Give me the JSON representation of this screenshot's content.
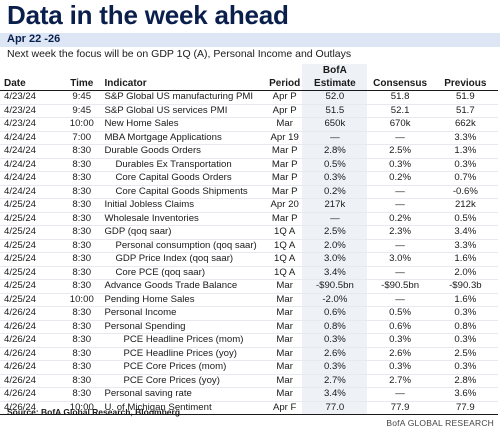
{
  "title": "Data in the week ahead",
  "banner": "Apr 22 -26",
  "subtitle": "Next week the focus will be on GDP 1Q (A), Personal Income and Outlays",
  "columns": {
    "date": "Date",
    "time": "Time",
    "indicator": "Indicator",
    "period": "Period",
    "bofa_top": "BofA",
    "bofa_bottom": "Estimate",
    "consensus": "Consensus",
    "previous": "Previous"
  },
  "rows": [
    {
      "date": "4/23/24",
      "time": "9:45",
      "indicator": "S&P Global US manufacturing PMI",
      "indent": 0,
      "period": "Apr P",
      "bofa": "52.0",
      "consensus": "51.8",
      "previous": "51.9"
    },
    {
      "date": "4/23/24",
      "time": "9:45",
      "indicator": "S&P Global US services PMI",
      "indent": 0,
      "period": "Apr P",
      "bofa": "51.5",
      "consensus": "52.1",
      "previous": "51.7"
    },
    {
      "date": "4/23/24",
      "time": "10:00",
      "indicator": "New Home Sales",
      "indent": 0,
      "period": "Mar",
      "bofa": "650k",
      "consensus": "670k",
      "previous": "662k"
    },
    {
      "date": "4/24/24",
      "time": "7:00",
      "indicator": "MBA Mortgage Applications",
      "indent": 0,
      "period": "Apr 19",
      "bofa": "—",
      "consensus": "—",
      "previous": "3.3%"
    },
    {
      "date": "4/24/24",
      "time": "8:30",
      "indicator": "Durable Goods Orders",
      "indent": 0,
      "period": "Mar P",
      "bofa": "2.8%",
      "consensus": "2.5%",
      "previous": "1.3%"
    },
    {
      "date": "4/24/24",
      "time": "8:30",
      "indicator": "Durables Ex Transportation",
      "indent": 1,
      "period": "Mar P",
      "bofa": "0.5%",
      "consensus": "0.3%",
      "previous": "0.3%"
    },
    {
      "date": "4/24/24",
      "time": "8:30",
      "indicator": "Core Capital Goods Orders",
      "indent": 1,
      "period": "Mar P",
      "bofa": "0.3%",
      "consensus": "0.2%",
      "previous": "0.7%"
    },
    {
      "date": "4/24/24",
      "time": "8:30",
      "indicator": "Core Capital Goods Shipments",
      "indent": 1,
      "period": "Mar P",
      "bofa": "0.2%",
      "consensus": "—",
      "previous": "-0.6%"
    },
    {
      "date": "4/25/24",
      "time": "8:30",
      "indicator": "Initial Jobless Claims",
      "indent": 0,
      "period": "Apr 20",
      "bofa": "217k",
      "consensus": "—",
      "previous": "212k"
    },
    {
      "date": "4/25/24",
      "time": "8:30",
      "indicator": "Wholesale Inventories",
      "indent": 0,
      "period": "Mar P",
      "bofa": "—",
      "consensus": "0.2%",
      "previous": "0.5%"
    },
    {
      "date": "4/25/24",
      "time": "8:30",
      "indicator": "GDP (qoq saar)",
      "indent": 0,
      "period": "1Q A",
      "bofa": "2.5%",
      "consensus": "2.3%",
      "previous": "3.4%"
    },
    {
      "date": "4/25/24",
      "time": "8:30",
      "indicator": "Personal consumption (qoq saar)",
      "indent": 1,
      "period": "1Q A",
      "bofa": "2.0%",
      "consensus": "—",
      "previous": "3.3%"
    },
    {
      "date": "4/25/24",
      "time": "8:30",
      "indicator": "GDP Price Index (qoq saar)",
      "indent": 1,
      "period": "1Q A",
      "bofa": "3.0%",
      "consensus": "3.0%",
      "previous": "1.6%"
    },
    {
      "date": "4/25/24",
      "time": "8:30",
      "indicator": "Core PCE (qoq saar)",
      "indent": 1,
      "period": "1Q A",
      "bofa": "3.4%",
      "consensus": "—",
      "previous": "2.0%"
    },
    {
      "date": "4/25/24",
      "time": "8:30",
      "indicator": "Advance Goods Trade Balance",
      "indent": 0,
      "period": "Mar",
      "bofa": "-$90.5bn",
      "consensus": "-$90.5bn",
      "previous": "-$90.3b"
    },
    {
      "date": "4/25/24",
      "time": "10:00",
      "indicator": "Pending Home Sales",
      "indent": 0,
      "period": "Mar",
      "bofa": "-2.0%",
      "consensus": "—",
      "previous": "1.6%"
    },
    {
      "date": "4/26/24",
      "time": "8:30",
      "indicator": "Personal Income",
      "indent": 0,
      "period": "Mar",
      "bofa": "0.6%",
      "consensus": "0.5%",
      "previous": "0.3%"
    },
    {
      "date": "4/26/24",
      "time": "8:30",
      "indicator": "Personal Spending",
      "indent": 0,
      "period": "Mar",
      "bofa": "0.8%",
      "consensus": "0.6%",
      "previous": "0.8%"
    },
    {
      "date": "4/26/24",
      "time": "8:30",
      "indicator": "PCE Headline Prices (mom)",
      "indent": 2,
      "period": "Mar",
      "bofa": "0.3%",
      "consensus": "0.3%",
      "previous": "0.3%"
    },
    {
      "date": "4/26/24",
      "time": "8:30",
      "indicator": "PCE Headline Prices (yoy)",
      "indent": 2,
      "period": "Mar",
      "bofa": "2.6%",
      "consensus": "2.6%",
      "previous": "2.5%"
    },
    {
      "date": "4/26/24",
      "time": "8:30",
      "indicator": "PCE Core Prices (mom)",
      "indent": 2,
      "period": "Mar",
      "bofa": "0.3%",
      "consensus": "0.3%",
      "previous": "0.3%"
    },
    {
      "date": "4/26/24",
      "time": "8:30",
      "indicator": "PCE Core Prices (yoy)",
      "indent": 2,
      "period": "Mar",
      "bofa": "2.7%",
      "consensus": "2.7%",
      "previous": "2.8%"
    },
    {
      "date": "4/26/24",
      "time": "8:30",
      "indicator": "Personal saving rate",
      "indent": 0,
      "period": "Mar",
      "bofa": "3.4%",
      "consensus": "—",
      "previous": "3.6%"
    },
    {
      "date": "4/26/24",
      "time": "10:00",
      "indicator": "U. of Michigan Sentiment",
      "indent": 0,
      "period": "Apr F",
      "bofa": "77.0",
      "consensus": "77.9",
      "previous": "77.9"
    }
  ],
  "source": "Source: BofA Global Research, Bloomberg",
  "brand": "BofA GLOBAL RESEARCH",
  "colors": {
    "title": "#0b1f4d",
    "banner_bg": "#dce6f4",
    "bofa_column_bg": "#eef2f7"
  }
}
